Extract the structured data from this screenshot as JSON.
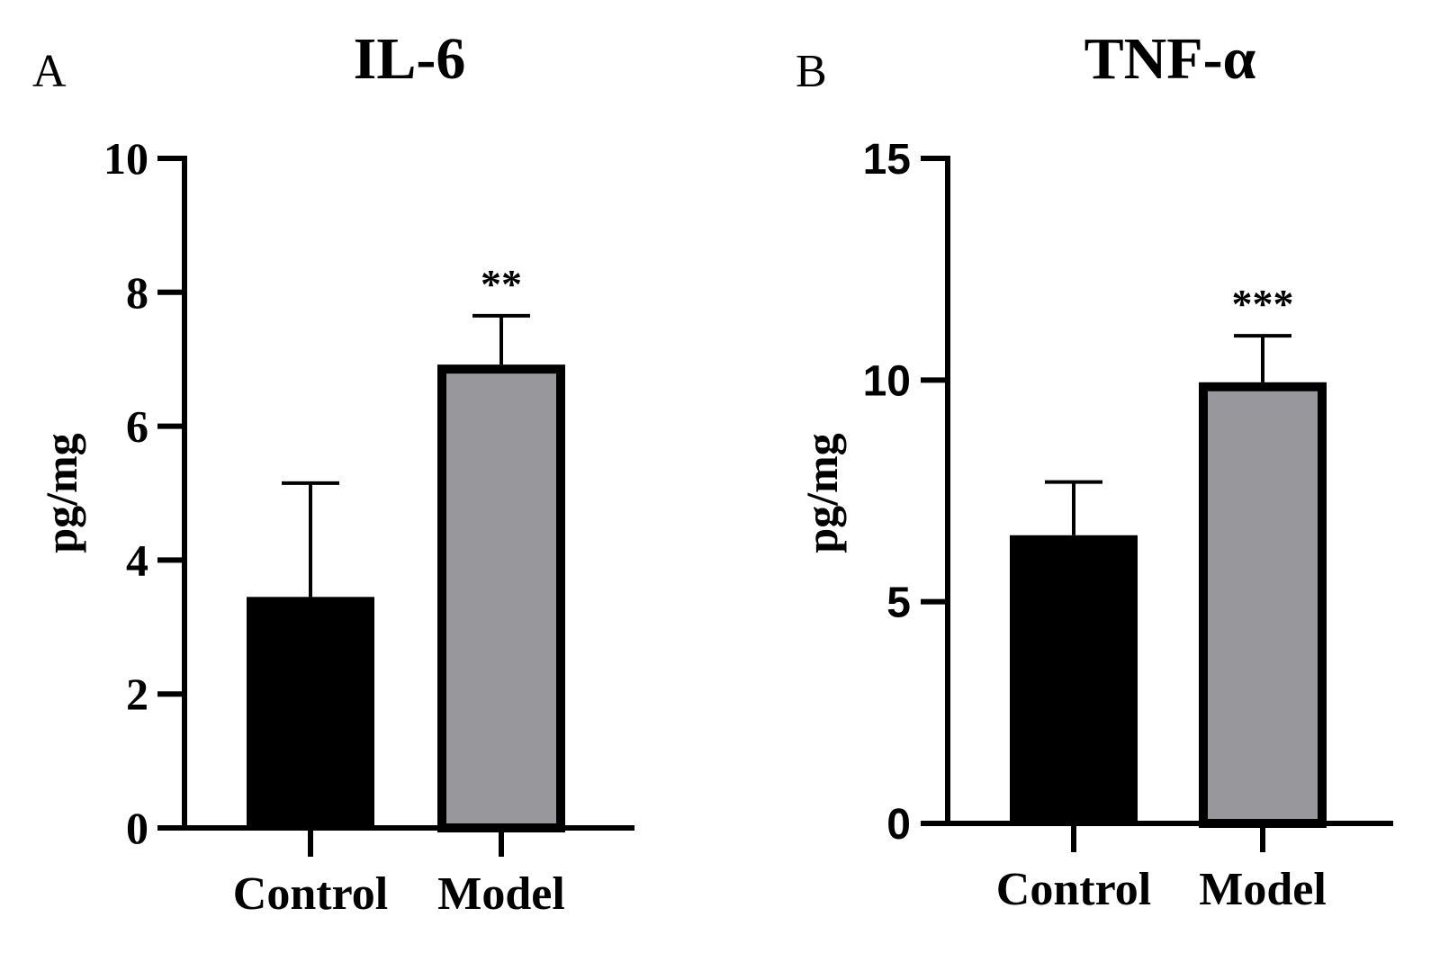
{
  "chart_data": [
    {
      "type": "bar",
      "panel": "A",
      "title": "IL-6",
      "ylabel": "pg/mg",
      "xlabel": "",
      "categories": [
        "Control",
        "Model"
      ],
      "values": [
        3.45,
        6.92
      ],
      "errors": [
        1.7,
        0.73
      ],
      "significance": [
        "",
        "**"
      ],
      "bar_colors": [
        "#000000",
        "#98989c"
      ],
      "ylim": [
        0,
        10
      ],
      "yticks": [
        0,
        2,
        4,
        6,
        8,
        10
      ],
      "grid": false
    },
    {
      "type": "bar",
      "panel": "B",
      "title": "TNF-α",
      "ylabel": "pg/mg",
      "xlabel": "",
      "categories": [
        "Control",
        "Model"
      ],
      "values": [
        6.5,
        9.95
      ],
      "errors": [
        1.2,
        1.05
      ],
      "significance": [
        "",
        "***"
      ],
      "bar_colors": [
        "#000000",
        "#98989c"
      ],
      "ylim": [
        0,
        15
      ],
      "yticks": [
        0,
        5,
        10,
        15
      ],
      "grid": false
    }
  ]
}
